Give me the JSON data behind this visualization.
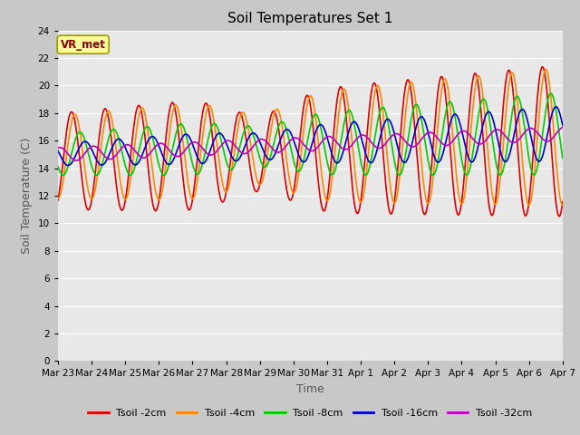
{
  "title": "Soil Temperatures Set 1",
  "xlabel": "Time",
  "ylabel": "Soil Temperature (C)",
  "ylim": [
    0,
    24
  ],
  "yticks": [
    0,
    2,
    4,
    6,
    8,
    10,
    12,
    14,
    16,
    18,
    20,
    22,
    24
  ],
  "x_tick_labels": [
    "Mar 23",
    "Mar 24",
    "Mar 25",
    "Mar 26",
    "Mar 27",
    "Mar 28",
    "Mar 29",
    "Mar 30",
    "Mar 31",
    "Apr 1",
    "Apr 2",
    "Apr 3",
    "Apr 4",
    "Apr 5",
    "Apr 6",
    "Apr 7"
  ],
  "series_colors": [
    "#dd0000",
    "#ff8800",
    "#00cc00",
    "#0000cc",
    "#bb00bb"
  ],
  "series_labels": [
    "Tsoil -2cm",
    "Tsoil -4cm",
    "Tsoil -8cm",
    "Tsoil -16cm",
    "Tsoil -32cm"
  ],
  "fig_bg": "#c8c8c8",
  "plot_bg": "#e8e8e8",
  "annotation_text": "VR_met",
  "annotation_bg": "#ffff99",
  "annotation_border": "#999900",
  "n_days": 15,
  "title_fontsize": 11,
  "label_fontsize": 9,
  "tick_fontsize": 7.5,
  "grid_color": "#ffffff",
  "line_width": 1.2,
  "legend_fontsize": 8
}
